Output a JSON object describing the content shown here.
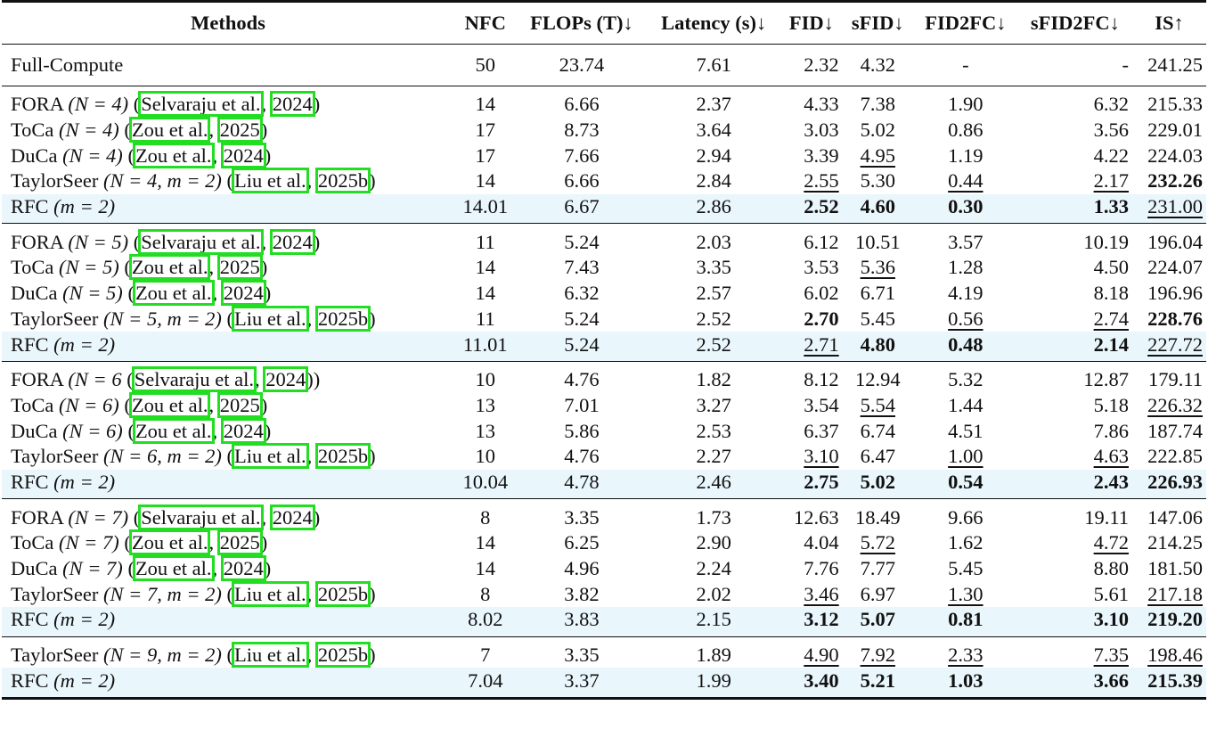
{
  "headers": [
    "Methods",
    "NFC",
    "FLOPs (T)↓",
    "Latency (s)↓",
    "FID↓",
    "sFID↓",
    "FID2FC↓",
    "sFID2FC↓",
    "IS↑"
  ],
  "full_compute": {
    "method": "Full-Compute",
    "nfc": "50",
    "flops": "23.74",
    "latency": "7.61",
    "fid": "2.32",
    "sfid": "4.32",
    "fid2fc": "-",
    "sfid2fc": "-",
    "is": "241.25"
  },
  "groups": [
    {
      "rows": [
        {
          "name": "FORA",
          "params": "(N = 4)",
          "cite_author": "Selvaraju et al.",
          "cite_year": "2024",
          "nfc": "14",
          "flops": "6.66",
          "latency": "2.37",
          "fid": "4.33",
          "sfid": "7.38",
          "fid2fc": "1.90",
          "sfid2fc": "6.32",
          "is": "215.33"
        },
        {
          "name": "ToCa",
          "params": "(N = 4)",
          "cite_author": "Zou et al.",
          "cite_year": "2025",
          "nfc": "17",
          "flops": "8.73",
          "latency": "3.64",
          "fid": "3.03",
          "sfid": "5.02",
          "fid2fc": "0.86",
          "sfid2fc": "3.56",
          "is": "229.01"
        },
        {
          "name": "DuCa",
          "params": "(N = 4)",
          "cite_author": "Zou et al.",
          "cite_year": "2024",
          "nfc": "17",
          "flops": "7.66",
          "latency": "2.94",
          "fid": "3.39",
          "sfid": "4.95",
          "fid2fc": "1.19",
          "sfid2fc": "4.22",
          "is": "224.03"
        },
        {
          "name": "TaylorSeer",
          "params": "(N = 4, m = 2)",
          "cite_author": "Liu et al.",
          "cite_year": "2025b",
          "nfc": "14",
          "flops": "6.66",
          "latency": "2.84",
          "fid": "2.55",
          "sfid": "5.30",
          "fid2fc": "0.44",
          "sfid2fc": "2.17",
          "is": "232.26"
        },
        {
          "name": "RFC",
          "params": "(m = 2)",
          "nfc": "14.01",
          "flops": "6.67",
          "latency": "2.86",
          "fid": "2.52",
          "sfid": "4.60",
          "fid2fc": "0.30",
          "sfid2fc": "1.33",
          "is": "231.00"
        }
      ]
    },
    {
      "rows": [
        {
          "name": "FORA",
          "params": "(N = 5)",
          "cite_author": "Selvaraju et al.",
          "cite_year": "2024",
          "nfc": "11",
          "flops": "5.24",
          "latency": "2.03",
          "fid": "6.12",
          "sfid": "10.51",
          "fid2fc": "3.57",
          "sfid2fc": "10.19",
          "is": "196.04"
        },
        {
          "name": "ToCa",
          "params": "(N = 5)",
          "cite_author": "Zou et al.",
          "cite_year": "2025",
          "nfc": "14",
          "flops": "7.43",
          "latency": "3.35",
          "fid": "3.53",
          "sfid": "5.36",
          "fid2fc": "1.28",
          "sfid2fc": "4.50",
          "is": "224.07"
        },
        {
          "name": "DuCa",
          "params": "(N = 5)",
          "cite_author": "Zou et al.",
          "cite_year": "2024",
          "nfc": "14",
          "flops": "6.32",
          "latency": "2.57",
          "fid": "6.02",
          "sfid": "6.71",
          "fid2fc": "4.19",
          "sfid2fc": "8.18",
          "is": "196.96"
        },
        {
          "name": "TaylorSeer",
          "params": "(N = 5, m = 2)",
          "cite_author": "Liu et al.",
          "cite_year": "2025b",
          "nfc": "11",
          "flops": "5.24",
          "latency": "2.52",
          "fid": "2.70",
          "sfid": "5.45",
          "fid2fc": "0.56",
          "sfid2fc": "2.74",
          "is": "228.76"
        },
        {
          "name": "RFC",
          "params": "(m = 2)",
          "nfc": "11.01",
          "flops": "5.24",
          "latency": "2.52",
          "fid": "2.71",
          "sfid": "4.80",
          "fid2fc": "0.48",
          "sfid2fc": "2.14",
          "is": "227.72"
        }
      ]
    },
    {
      "rows": [
        {
          "name": "FORA",
          "params": "(N = 6",
          "cite_author": "Selvaraju et al.",
          "cite_year": "2024",
          "cite_suffix": ")",
          "nfc": "10",
          "flops": "4.76",
          "latency": "1.82",
          "fid": "8.12",
          "sfid": "12.94",
          "fid2fc": "5.32",
          "sfid2fc": "12.87",
          "is": "179.11"
        },
        {
          "name": "ToCa",
          "params": "(N = 6)",
          "cite_author": "Zou et al.",
          "cite_year": "2025",
          "nfc": "13",
          "flops": "7.01",
          "latency": "3.27",
          "fid": "3.54",
          "sfid": "5.54",
          "fid2fc": "1.44",
          "sfid2fc": "5.18",
          "is": "226.32"
        },
        {
          "name": "DuCa",
          "params": "(N = 6)",
          "cite_author": "Zou et al.",
          "cite_year": "2024",
          "nfc": "13",
          "flops": "5.86",
          "latency": "2.53",
          "fid": "6.37",
          "sfid": "6.74",
          "fid2fc": "4.51",
          "sfid2fc": "7.86",
          "is": "187.74"
        },
        {
          "name": "TaylorSeer",
          "params": "(N = 6, m = 2)",
          "cite_author": "Liu et al.",
          "cite_year": "2025b",
          "nfc": "10",
          "flops": "4.76",
          "latency": "2.27",
          "fid": "3.10",
          "sfid": "6.47",
          "fid2fc": "1.00",
          "sfid2fc": "4.63",
          "is": "222.85"
        },
        {
          "name": "RFC",
          "params": "(m = 2)",
          "nfc": "10.04",
          "flops": "4.78",
          "latency": "2.46",
          "fid": "2.75",
          "sfid": "5.02",
          "fid2fc": "0.54",
          "sfid2fc": "2.43",
          "is": "226.93"
        }
      ]
    },
    {
      "rows": [
        {
          "name": "FORA",
          "params": "(N = 7)",
          "cite_author": "Selvaraju et al.",
          "cite_year": "2024",
          "nfc": "8",
          "flops": "3.35",
          "latency": "1.73",
          "fid": "12.63",
          "sfid": "18.49",
          "fid2fc": "9.66",
          "sfid2fc": "19.11",
          "is": "147.06"
        },
        {
          "name": "ToCa",
          "params": "(N = 7)",
          "cite_author": "Zou et al.",
          "cite_year": "2025",
          "nfc": "14",
          "flops": "6.25",
          "latency": "2.90",
          "fid": "4.04",
          "sfid": "5.72",
          "fid2fc": "1.62",
          "sfid2fc": "4.72",
          "is": "214.25"
        },
        {
          "name": "DuCa",
          "params": "(N = 7)",
          "cite_author": "Zou et al.",
          "cite_year": "2024",
          "nfc": "14",
          "flops": "4.96",
          "latency": "2.24",
          "fid": "7.76",
          "sfid": "7.77",
          "fid2fc": "5.45",
          "sfid2fc": "8.80",
          "is": "181.50"
        },
        {
          "name": "TaylorSeer",
          "params": "(N = 7, m = 2)",
          "cite_author": "Liu et al.",
          "cite_year": "2025b",
          "nfc": "8",
          "flops": "3.82",
          "latency": "2.02",
          "fid": "3.46",
          "sfid": "6.97",
          "fid2fc": "1.30",
          "sfid2fc": "5.61",
          "is": "217.18"
        },
        {
          "name": "RFC",
          "params": "(m = 2)",
          "nfc": "8.02",
          "flops": "3.83",
          "latency": "2.15",
          "fid": "3.12",
          "sfid": "5.07",
          "fid2fc": "0.81",
          "sfid2fc": "3.10",
          "is": "219.20"
        }
      ]
    },
    {
      "rows": [
        {
          "name": "TaylorSeer",
          "params": "(N = 9, m = 2)",
          "cite_author": "Liu et al.",
          "cite_year": "2025b",
          "nfc": "7",
          "flops": "3.35",
          "latency": "1.89",
          "fid": "4.90",
          "sfid": "7.92",
          "fid2fc": "2.33",
          "sfid2fc": "7.35",
          "is": "198.46"
        },
        {
          "name": "RFC",
          "params": "(m = 2)",
          "nfc": "7.04",
          "flops": "3.37",
          "latency": "1.99",
          "fid": "3.40",
          "sfid": "5.21",
          "fid2fc": "1.03",
          "sfid2fc": "3.66",
          "is": "215.39"
        }
      ]
    }
  ],
  "styles": {
    "highlight_row_bg": "#e9f6fc",
    "citation_box_color": "#22dd22"
  }
}
